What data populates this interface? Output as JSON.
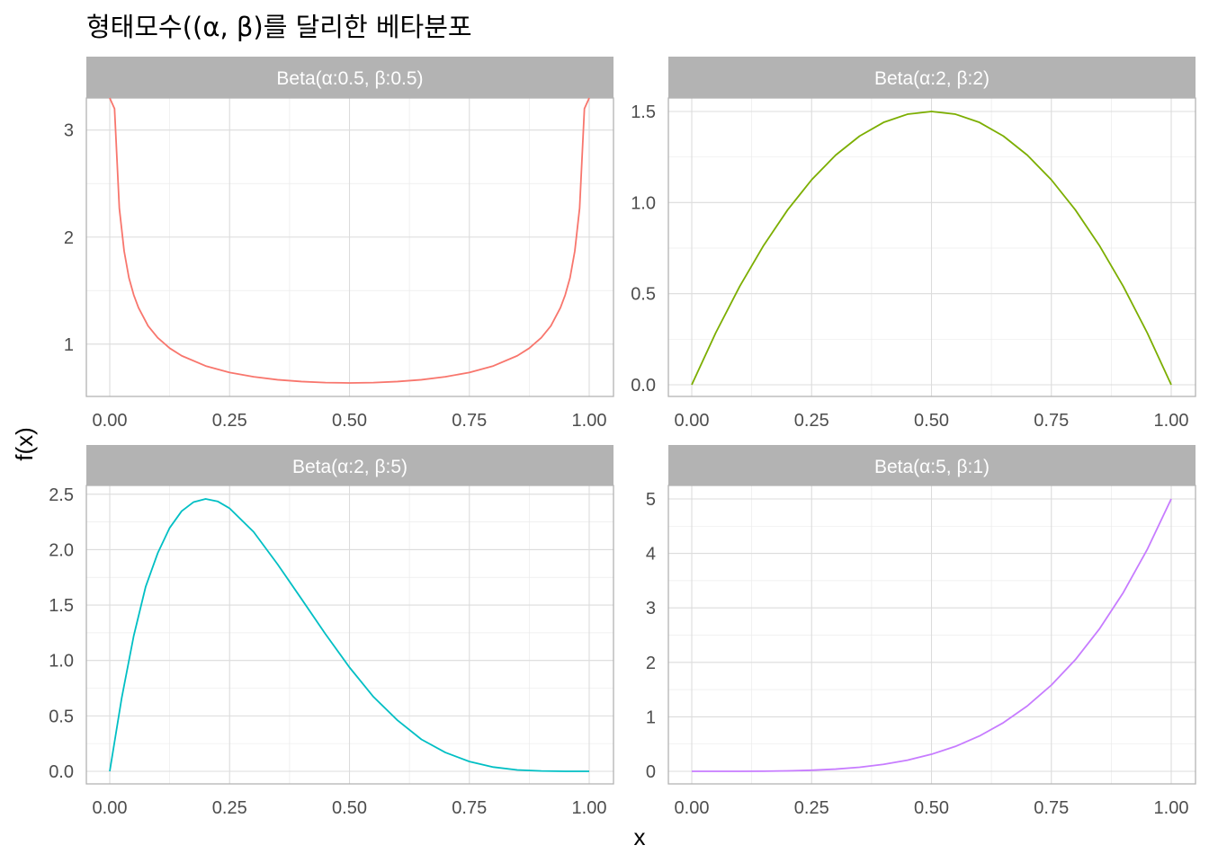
{
  "title": "형태모수((α, β)를 달리한 베타분포",
  "xlabel": "x",
  "ylabel": "f(x)",
  "chart_data": [
    {
      "type": "line",
      "strip_label": "Beta(α:0.5, β:0.5)",
      "params": {
        "alpha": 0.5,
        "beta": 0.5
      },
      "color": "#F8766D",
      "xlim": [
        0,
        1
      ],
      "ylim": [
        0.637,
        3.3
      ],
      "x_ticks": [
        "0.00",
        "0.25",
        "0.50",
        "0.75",
        "1.00"
      ],
      "y_ticks": [
        "1",
        "2",
        "3"
      ],
      "x": [
        0.0,
        0.01,
        0.02,
        0.03,
        0.04,
        0.05,
        0.06,
        0.08,
        0.1,
        0.125,
        0.15,
        0.2,
        0.25,
        0.3,
        0.35,
        0.4,
        0.45,
        0.5,
        0.55,
        0.6,
        0.65,
        0.7,
        0.75,
        0.8,
        0.85,
        0.875,
        0.9,
        0.92,
        0.94,
        0.95,
        0.96,
        0.97,
        0.98,
        0.99,
        1.0
      ],
      "y": [
        3.3,
        3.2,
        2.27,
        1.87,
        1.62,
        1.46,
        1.34,
        1.17,
        1.06,
        0.962,
        0.891,
        0.796,
        0.735,
        0.695,
        0.667,
        0.65,
        0.64,
        0.637,
        0.64,
        0.65,
        0.667,
        0.695,
        0.735,
        0.796,
        0.891,
        0.962,
        1.06,
        1.17,
        1.34,
        1.46,
        1.62,
        1.87,
        2.27,
        3.2,
        3.3
      ]
    },
    {
      "type": "line",
      "strip_label": "Beta(α:2, β:2)",
      "params": {
        "alpha": 2,
        "beta": 2
      },
      "color": "#7CAE00",
      "xlim": [
        0,
        1
      ],
      "ylim": [
        0,
        1.5
      ],
      "x_ticks": [
        "0.00",
        "0.25",
        "0.50",
        "0.75",
        "1.00"
      ],
      "y_ticks": [
        "0.0",
        "0.5",
        "1.0",
        "1.5"
      ],
      "x": [
        0.0,
        0.05,
        0.1,
        0.15,
        0.2,
        0.25,
        0.3,
        0.35,
        0.4,
        0.45,
        0.5,
        0.55,
        0.6,
        0.65,
        0.7,
        0.75,
        0.8,
        0.85,
        0.9,
        0.95,
        1.0
      ],
      "y": [
        0.0,
        0.285,
        0.54,
        0.765,
        0.96,
        1.125,
        1.26,
        1.365,
        1.44,
        1.485,
        1.5,
        1.485,
        1.44,
        1.365,
        1.26,
        1.125,
        0.96,
        0.765,
        0.54,
        0.285,
        0.0
      ]
    },
    {
      "type": "line",
      "strip_label": "Beta(α:2, β:5)",
      "params": {
        "alpha": 2,
        "beta": 5
      },
      "color": "#00BFC4",
      "xlim": [
        0,
        1
      ],
      "ylim": [
        0,
        2.458
      ],
      "x_ticks": [
        "0.00",
        "0.25",
        "0.50",
        "0.75",
        "1.00"
      ],
      "y_ticks": [
        "0.0",
        "0.5",
        "1.0",
        "1.5",
        "2.0",
        "2.5"
      ],
      "x": [
        0.0,
        0.025,
        0.05,
        0.075,
        0.1,
        0.125,
        0.15,
        0.175,
        0.2,
        0.225,
        0.25,
        0.3,
        0.35,
        0.4,
        0.45,
        0.5,
        0.55,
        0.6,
        0.65,
        0.7,
        0.75,
        0.8,
        0.85,
        0.9,
        0.95,
        1.0
      ],
      "y": [
        0.0,
        0.663,
        1.222,
        1.667,
        1.968,
        2.197,
        2.348,
        2.43,
        2.458,
        2.436,
        2.373,
        2.161,
        1.869,
        1.555,
        1.238,
        0.938,
        0.672,
        0.461,
        0.288,
        0.17,
        0.088,
        0.038,
        0.012,
        0.003,
        0.0,
        0.0
      ]
    },
    {
      "type": "line",
      "strip_label": "Beta(α:5, β:1)",
      "params": {
        "alpha": 5,
        "beta": 1
      },
      "color": "#C77CFF",
      "xlim": [
        0,
        1
      ],
      "ylim": [
        0,
        5
      ],
      "x_ticks": [
        "0.00",
        "0.25",
        "0.50",
        "0.75",
        "1.00"
      ],
      "y_ticks": [
        "0",
        "1",
        "2",
        "3",
        "4",
        "5"
      ],
      "x": [
        0.0,
        0.05,
        0.1,
        0.15,
        0.2,
        0.25,
        0.3,
        0.35,
        0.4,
        0.45,
        0.5,
        0.55,
        0.6,
        0.65,
        0.7,
        0.75,
        0.8,
        0.85,
        0.9,
        0.95,
        1.0
      ],
      "y": [
        0.0,
        0.0,
        0.0005,
        0.0025,
        0.008,
        0.0195,
        0.0405,
        0.075,
        0.128,
        0.205,
        0.3125,
        0.4575,
        0.648,
        0.8925,
        1.2005,
        1.582,
        2.048,
        2.61,
        3.2805,
        4.0725,
        5.0
      ]
    }
  ]
}
